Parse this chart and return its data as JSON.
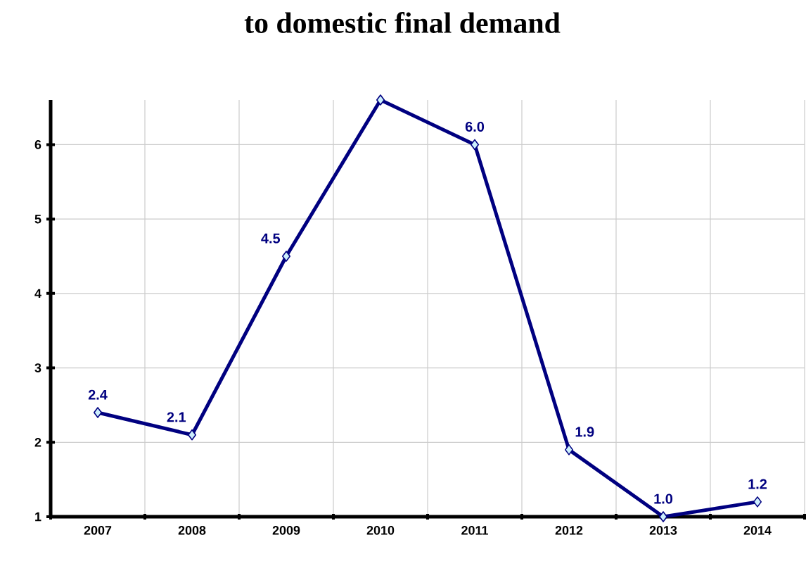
{
  "chart_data": {
    "type": "line",
    "title": "to domestic final demand",
    "categories": [
      "2007",
      "2008",
      "2009",
      "2010",
      "2011",
      "2012",
      "2013",
      "2014"
    ],
    "series": [
      {
        "color": "#000080",
        "values": [
          2.4,
          2.1,
          4.5,
          6.6,
          6.0,
          1.9,
          1.0,
          1.2
        ],
        "value_labels": [
          "2.4",
          "2.1",
          "4.5",
          null,
          "6.0",
          "1.9",
          "1.0",
          "1.2"
        ]
      }
    ],
    "ylim": [
      1,
      6.6
    ],
    "yticks": [
      1,
      2,
      3,
      4,
      5,
      6
    ],
    "grid": true,
    "marker": "diamond",
    "line_style": "solid"
  }
}
